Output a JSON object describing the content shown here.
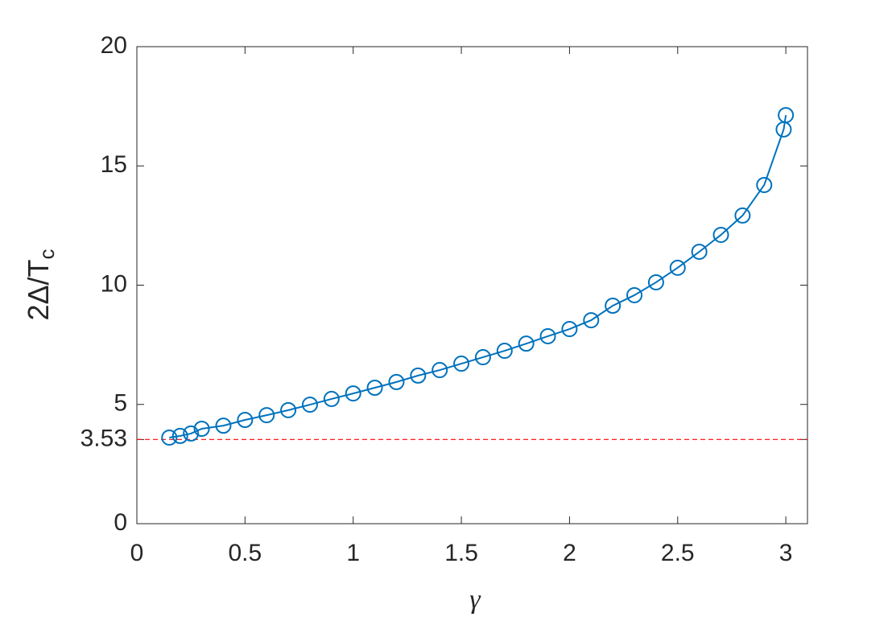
{
  "chart_data": {
    "type": "line",
    "xlabel": "γ",
    "ylabel": "2Δ/T",
    "ylabel_sub": "c",
    "xlim": [
      0,
      3.1
    ],
    "ylim": [
      0,
      20
    ],
    "xticks": [
      0,
      0.5,
      1,
      1.5,
      2,
      2.5,
      3
    ],
    "yticks": [
      0,
      3.53,
      5,
      10,
      15,
      20
    ],
    "reference_line": {
      "value": 3.53,
      "color": "#ff0000"
    },
    "series": [
      {
        "color": "#0072bd",
        "x": [
          0.15,
          0.2,
          0.25,
          0.3,
          0.4,
          0.5,
          0.6,
          0.7,
          0.8,
          0.9,
          1.0,
          1.1,
          1.2,
          1.3,
          1.4,
          1.5,
          1.6,
          1.7,
          1.8,
          1.9,
          2.0,
          2.1,
          2.2,
          2.3,
          2.4,
          2.5,
          2.6,
          2.7,
          2.8,
          2.9,
          2.99,
          3.0
        ],
        "values": [
          3.61,
          3.68,
          3.78,
          3.98,
          4.11,
          4.35,
          4.55,
          4.76,
          4.99,
          5.23,
          5.46,
          5.7,
          5.94,
          6.21,
          6.44,
          6.71,
          6.98,
          7.25,
          7.55,
          7.86,
          8.16,
          8.53,
          9.14,
          9.58,
          10.12,
          10.73,
          11.4,
          12.11,
          12.92,
          14.2,
          16.53,
          17.13
        ]
      }
    ]
  }
}
